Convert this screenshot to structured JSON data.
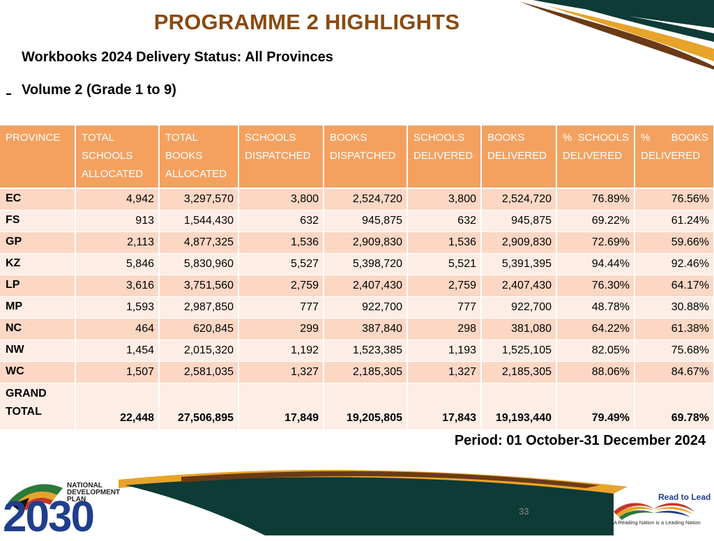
{
  "slide": {
    "title": "PROGRAMME 2 HIGHLIGHTS",
    "subtitle": "Workbooks 2024 Delivery Status: All Provinces",
    "volume": "Volume 2 (Grade 1 to 9)",
    "period": "Period: 01 October-31 December 2024",
    "page_number": "33"
  },
  "table": {
    "headers": [
      "PROVINCE",
      "TOTAL SCHOOLS ALLOCATED",
      "TOTAL BOOKS ALLOCATED",
      "SCHOOLS DISPATCHED",
      "BOOKS DISPATCHED",
      "SCHOOLS DELIVERED",
      "BOOKS DELIVERED",
      "% SCHOOLS DELIVERED",
      "% BOOKS DELIVERED"
    ],
    "rows": [
      [
        "EC",
        "4,942",
        "3,297,570",
        "3,800",
        "2,524,720",
        "3,800",
        "2,524,720",
        "76.89%",
        "76.56%"
      ],
      [
        "FS",
        "913",
        "1,544,430",
        "632",
        "945,875",
        "632",
        "945,875",
        "69.22%",
        "61.24%"
      ],
      [
        "GP",
        "2,113",
        "4,877,325",
        "1,536",
        "2,909,830",
        "1,536",
        "2,909,830",
        "72.69%",
        "59.66%"
      ],
      [
        "KZ",
        "5,846",
        "5,830,960",
        "5,527",
        "5,398,720",
        "5,521",
        "5,391,395",
        "94.44%",
        "92.46%"
      ],
      [
        "LP",
        "3,616",
        "3,751,560",
        "2,759",
        "2,407,430",
        "2,759",
        "2,407,430",
        "76.30%",
        "64.17%"
      ],
      [
        "MP",
        "1,593",
        "2,987,850",
        "777",
        "922,700",
        "777",
        "922,700",
        "48.78%",
        "30.88%"
      ],
      [
        "NC",
        "464",
        "620,845",
        "299",
        "387,840",
        "298",
        "381,080",
        "64.22%",
        "61.38%"
      ],
      [
        "NW",
        "1,454",
        "2,015,320",
        "1,192",
        "1,523,385",
        "1,193",
        "1,525,105",
        "82.05%",
        "75.68%"
      ],
      [
        "WC",
        "1,507",
        "2,581,035",
        "1,327",
        "2,185,305",
        "1,327",
        "2,185,305",
        "88.06%",
        "84.67%"
      ]
    ],
    "total": [
      "GRAND TOTAL",
      "22,448",
      "27,506,895",
      "17,849",
      "19,205,805",
      "17,843",
      "19,193,440",
      "79.49%",
      "69.78%"
    ]
  },
  "logos": {
    "ndp_text": [
      "NATIONAL",
      "DEVELOPMENT",
      "PLAN"
    ],
    "ndp_year": "2030",
    "rtl_title": "Read to Lead",
    "rtl_slogan": "A Reading Nation is a Leading Nation"
  },
  "colors": {
    "title": "#8a4a10",
    "header_bg": "#f4a160",
    "row_odd": "#fbd7c4",
    "row_even": "#fdede5",
    "deco_dark": "#0e3b36",
    "deco_gold": "#e8a32a",
    "deco_brown": "#6b3a16"
  }
}
